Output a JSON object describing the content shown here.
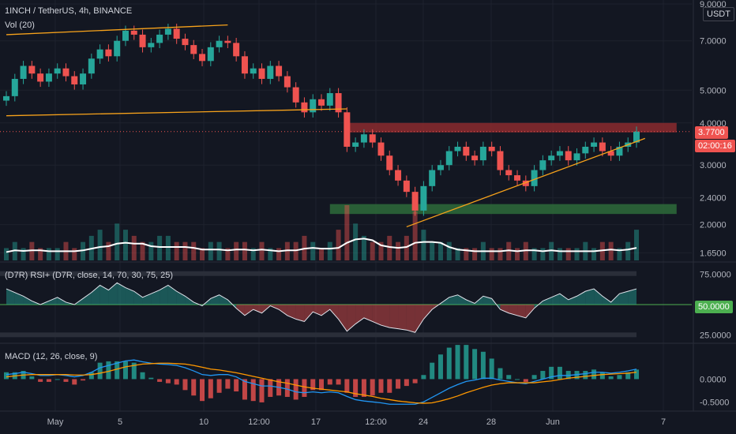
{
  "header": {
    "symbol": "1INCH / TetherUS, 4h, BINANCE",
    "vol_label": "Vol (20)",
    "currency": "USDT"
  },
  "rsi": {
    "title": "(D7R) RSI+ (D7R, close, 14, 70, 30, 75, 25)",
    "current_label": "50.0000"
  },
  "macd": {
    "title": "MACD (12, 26, close, 9)"
  },
  "price_axis": {
    "ticks": [
      "9.0000",
      "7.0000",
      "5.0000",
      "4.0000",
      "3.0000",
      "2.4000",
      "2.0000",
      "1.6500"
    ],
    "current_price": "3.7700",
    "countdown": "02:00:16"
  },
  "rsi_axis": {
    "ticks": [
      "75.0000",
      "25.0000"
    ]
  },
  "macd_axis": {
    "ticks": [
      "0.0000",
      "-0.5000"
    ]
  },
  "time_axis": {
    "labels": [
      "May",
      "5",
      "10",
      "12:00",
      "17",
      "12:00",
      "24",
      "28",
      "Jun",
      "7"
    ]
  },
  "colors": {
    "background": "#131722",
    "up": "#26a69a",
    "down": "#ef5350",
    "trendline": "#f7a21b",
    "resistance_zone": "#8b2a2e",
    "support_zone": "#2e6b3a",
    "rsi_mid": "#4caf50",
    "macd_line": "#2196f3",
    "signal_line": "#ff9800"
  },
  "chart_data": {
    "type": "candlestick",
    "scale": "log",
    "price_range": [
      1.55,
      9.0
    ],
    "close_series": [
      4.8,
      5.4,
      5.9,
      5.6,
      5.3,
      5.6,
      5.8,
      5.5,
      5.2,
      5.6,
      6.2,
      6.6,
      6.3,
      7.0,
      7.5,
      7.3,
      6.7,
      6.9,
      7.3,
      7.6,
      7.1,
      6.8,
      6.4,
      6.1,
      6.7,
      7.0,
      6.9,
      6.3,
      5.6,
      5.8,
      5.4,
      5.9,
      5.5,
      5.1,
      4.6,
      4.3,
      4.7,
      4.5,
      4.9,
      4.3,
      3.4,
      3.5,
      3.7,
      3.5,
      3.2,
      2.9,
      2.7,
      2.5,
      2.2,
      2.6,
      2.9,
      3.0,
      3.3,
      3.4,
      3.2,
      3.1,
      3.4,
      3.3,
      2.9,
      2.8,
      2.7,
      2.6,
      2.9,
      3.1,
      3.2,
      3.3,
      3.1,
      3.25,
      3.4,
      3.5,
      3.3,
      3.2,
      3.4,
      3.5,
      3.77
    ],
    "volume_series": [
      2,
      3,
      2,
      3,
      2,
      2,
      2,
      3,
      2,
      3,
      4,
      5,
      3,
      6,
      5,
      4,
      3,
      3,
      4,
      4,
      3,
      3,
      3,
      2,
      3,
      3,
      2,
      3,
      3,
      2,
      3,
      2,
      2,
      3,
      3,
      4,
      3,
      2,
      3,
      5,
      9,
      6,
      4,
      3,
      3,
      4,
      3,
      4,
      8,
      5,
      3,
      3,
      3,
      2,
      2,
      2,
      3,
      2,
      2,
      3,
      2,
      3,
      2,
      2,
      3,
      2,
      2,
      2,
      3,
      2,
      3,
      3,
      2,
      3,
      5
    ],
    "rsi_series": [
      63,
      60,
      57,
      53,
      50,
      53,
      56,
      52,
      50,
      55,
      60,
      66,
      62,
      68,
      64,
      61,
      56,
      59,
      62,
      66,
      61,
      57,
      52,
      49,
      55,
      58,
      54,
      47,
      41,
      46,
      43,
      49,
      46,
      41,
      38,
      36,
      44,
      41,
      46,
      38,
      28,
      34,
      39,
      36,
      33,
      31,
      30,
      29,
      27,
      38,
      46,
      51,
      56,
      58,
      54,
      51,
      57,
      55,
      46,
      43,
      41,
      39,
      47,
      53,
      56,
      59,
      54,
      57,
      61,
      63,
      57,
      52,
      59,
      61,
      63
    ],
    "rsi_levels": [
      75,
      50,
      25
    ],
    "macd_series": [
      0.1,
      0.12,
      0.15,
      0.12,
      0.08,
      0.08,
      0.1,
      0.08,
      0.05,
      0.08,
      0.15,
      0.25,
      0.3,
      0.35,
      0.4,
      0.42,
      0.38,
      0.35,
      0.33,
      0.32,
      0.3,
      0.25,
      0.18,
      0.1,
      0.08,
      0.1,
      0.1,
      0.05,
      -0.05,
      -0.1,
      -0.15,
      -0.15,
      -0.18,
      -0.22,
      -0.28,
      -0.3,
      -0.28,
      -0.3,
      -0.28,
      -0.3,
      -0.38,
      -0.45,
      -0.48,
      -0.5,
      -0.52,
      -0.55,
      -0.55,
      -0.55,
      -0.55,
      -0.5,
      -0.4,
      -0.3,
      -0.2,
      -0.12,
      -0.05,
      -0.02,
      0.02,
      0.02,
      -0.02,
      -0.05,
      -0.08,
      -0.1,
      -0.05,
      0.0,
      0.05,
      0.08,
      0.08,
      0.1,
      0.12,
      0.15,
      0.15,
      0.13,
      0.15,
      0.18,
      0.22
    ],
    "signal_series": [
      0.05,
      0.07,
      0.09,
      0.1,
      0.1,
      0.1,
      0.1,
      0.1,
      0.09,
      0.09,
      0.1,
      0.13,
      0.17,
      0.22,
      0.27,
      0.3,
      0.33,
      0.34,
      0.35,
      0.35,
      0.34,
      0.33,
      0.3,
      0.26,
      0.22,
      0.2,
      0.17,
      0.14,
      0.1,
      0.06,
      0.02,
      -0.02,
      -0.06,
      -0.09,
      -0.13,
      -0.17,
      -0.2,
      -0.22,
      -0.24,
      -0.26,
      -0.28,
      -0.32,
      -0.35,
      -0.38,
      -0.42,
      -0.45,
      -0.48,
      -0.5,
      -0.52,
      -0.53,
      -0.52,
      -0.48,
      -0.43,
      -0.37,
      -0.3,
      -0.24,
      -0.18,
      -0.13,
      -0.1,
      -0.08,
      -0.08,
      -0.08,
      -0.08,
      -0.06,
      -0.04,
      -0.01,
      0.02,
      0.04,
      0.06,
      0.08,
      0.1,
      0.11,
      0.12,
      0.13,
      0.15
    ],
    "macd_range": [
      -0.65,
      0.7
    ],
    "annotations": [
      {
        "type": "trendline",
        "from": [
          0,
          7.3
        ],
        "to": [
          26,
          7.8
        ]
      },
      {
        "type": "trendline",
        "from": [
          0,
          4.2
        ],
        "to": [
          40,
          4.4
        ]
      },
      {
        "type": "trendline",
        "from": [
          47,
          1.97
        ],
        "to": [
          75,
          3.6
        ]
      },
      {
        "type": "zone",
        "from_index": 40,
        "to_index": 75,
        "low": 3.75,
        "high": 4.0
      },
      {
        "type": "zone",
        "from_index": 38,
        "to_index": 75,
        "low": 2.15,
        "high": 2.3
      }
    ]
  }
}
